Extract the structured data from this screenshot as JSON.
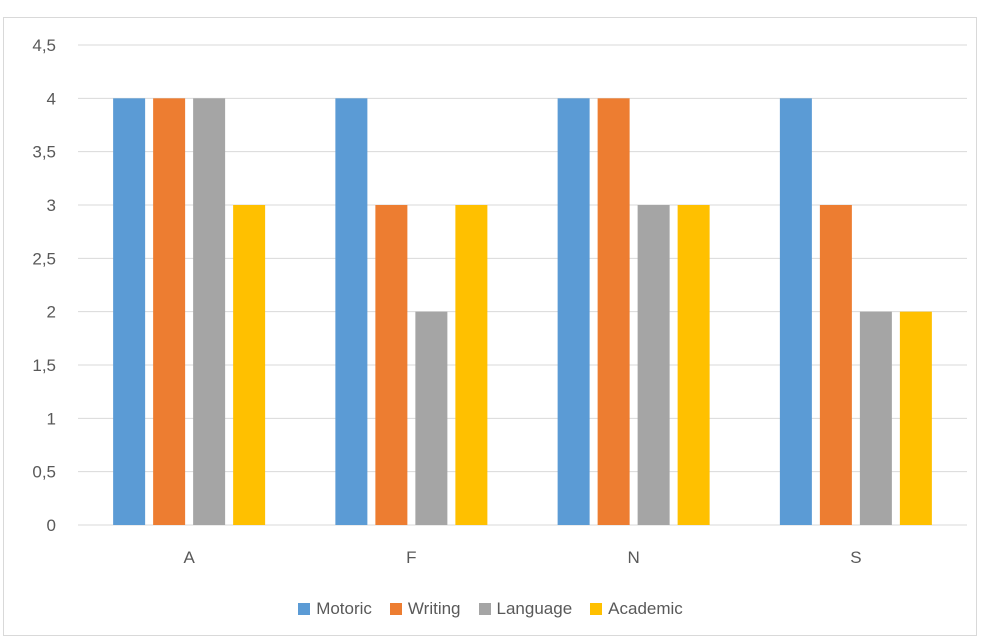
{
  "chart_data": {
    "type": "bar",
    "categories": [
      "A",
      "F",
      "N",
      "S"
    ],
    "series": [
      {
        "name": "Motoric",
        "color": "#5b9bd5",
        "values": [
          4,
          4,
          4,
          4
        ]
      },
      {
        "name": "Writing",
        "color": "#ed7d31",
        "values": [
          4,
          3,
          4,
          3
        ]
      },
      {
        "name": "Language",
        "color": "#a5a5a5",
        "values": [
          4,
          2,
          3,
          2
        ]
      },
      {
        "name": "Academic",
        "color": "#ffc000",
        "values": [
          3,
          3,
          3,
          2
        ]
      }
    ],
    "y_ticks": [
      "0",
      "0,5",
      "1",
      "1,5",
      "2",
      "2,5",
      "3",
      "3,5",
      "4",
      "4,5"
    ],
    "ylim": [
      0,
      4.5
    ],
    "grid": true,
    "legend_position": "bottom"
  }
}
